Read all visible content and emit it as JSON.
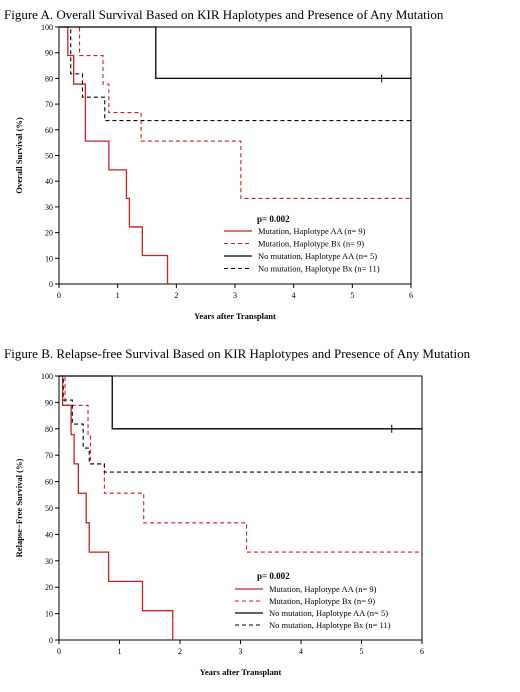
{
  "figures": [
    {
      "id": "A",
      "title": "Figure A. Overall Survival Based on KIR Haplotypes and Presence of Any Mutation"
    },
    {
      "id": "B",
      "title": "Figure B. Relapse-free Survival Based on KIR Haplotypes and Presence of Any Mutation"
    }
  ],
  "colors": {
    "red": "#cc1f1f",
    "black": "#000000"
  },
  "chart_data": [
    {
      "type": "line",
      "subtype": "kaplan-meier-step",
      "xlabel": "Years after Transplant",
      "ylabel": "Overall Survival (%)",
      "xlim": [
        0,
        6
      ],
      "ylim": [
        0,
        100
      ],
      "xticks": [
        "0",
        "1",
        "2",
        "3",
        "4",
        "5",
        "6"
      ],
      "yticks": [
        "0",
        "10",
        "20",
        "30",
        "40",
        "50",
        "60",
        "70",
        "80",
        "90",
        "100"
      ],
      "annotation": "p= 0.002",
      "legend_position": "bottom-right",
      "series": [
        {
          "name": "Mutation, Haplotype AA (n= 9)",
          "color": "#cc1f1f",
          "dash": false,
          "steps": [
            [
              0,
              100
            ],
            [
              0.15,
              88.9
            ],
            [
              0.25,
              77.8
            ],
            [
              0.45,
              55.6
            ],
            [
              0.85,
              44.4
            ],
            [
              1.15,
              33.3
            ],
            [
              1.2,
              22.2
            ],
            [
              1.42,
              11.1
            ],
            [
              1.85,
              0
            ]
          ],
          "end": 1.85,
          "censor": []
        },
        {
          "name": "Mutation, Haplotype Bx (n= 9)",
          "color": "#cc1f1f",
          "dash": true,
          "steps": [
            [
              0,
              100
            ],
            [
              0.35,
              88.9
            ],
            [
              0.75,
              77.8
            ],
            [
              0.85,
              66.7
            ],
            [
              1.4,
              55.6
            ],
            [
              3.1,
              33.3
            ]
          ],
          "end": 6,
          "censor": []
        },
        {
          "name": "No mutation, Haplotype AA (n= 5)",
          "color": "#000000",
          "dash": false,
          "steps": [
            [
              0,
              100
            ],
            [
              1.65,
              80
            ]
          ],
          "end": 6,
          "censor": [
            5.5
          ]
        },
        {
          "name": "No mutation, Haplotype Bx (n= 11)",
          "color": "#000000",
          "dash": true,
          "steps": [
            [
              0,
              100
            ],
            [
              0.2,
              81.8
            ],
            [
              0.4,
              72.7
            ],
            [
              0.78,
              63.6
            ]
          ],
          "end": 6,
          "censor": []
        }
      ]
    },
    {
      "type": "line",
      "subtype": "kaplan-meier-step",
      "xlabel": "Years after Transplant",
      "ylabel": "Relapse−Free Survival (%)",
      "xlim": [
        0,
        6
      ],
      "ylim": [
        0,
        100
      ],
      "xticks": [
        "0",
        "1",
        "2",
        "3",
        "4",
        "5",
        "6"
      ],
      "yticks": [
        "0",
        "10",
        "20",
        "30",
        "40",
        "50",
        "60",
        "70",
        "80",
        "90",
        "100"
      ],
      "annotation": "p= 0.002",
      "legend_position": "bottom-right",
      "series": [
        {
          "name": "Mutation, Haplotype AA (n= 9)",
          "color": "#cc1f1f",
          "dash": false,
          "steps": [
            [
              0,
              100
            ],
            [
              0.06,
              88.9
            ],
            [
              0.2,
              77.8
            ],
            [
              0.25,
              66.7
            ],
            [
              0.32,
              55.6
            ],
            [
              0.45,
              44.4
            ],
            [
              0.5,
              33.3
            ],
            [
              0.82,
              22.2
            ],
            [
              1.38,
              11.1
            ],
            [
              1.88,
              0
            ]
          ],
          "end": 1.88,
          "censor": []
        },
        {
          "name": "Mutation, Haplotype Bx (n= 9)",
          "color": "#cc1f1f",
          "dash": true,
          "steps": [
            [
              0,
              100
            ],
            [
              0.1,
              88.9
            ],
            [
              0.48,
              77.8
            ],
            [
              0.52,
              66.7
            ],
            [
              0.75,
              55.6
            ],
            [
              1.4,
              44.4
            ],
            [
              3.1,
              33.3
            ]
          ],
          "end": 6,
          "censor": []
        },
        {
          "name": "No mutation, Haplotype AA (n= 5)",
          "color": "#000000",
          "dash": false,
          "steps": [
            [
              0,
              100
            ],
            [
              0.88,
              80
            ]
          ],
          "end": 6,
          "censor": [
            5.5
          ]
        },
        {
          "name": "No mutation, Haplotype Bx (n= 11)",
          "color": "#000000",
          "dash": true,
          "steps": [
            [
              0,
              100
            ],
            [
              0.07,
              90.9
            ],
            [
              0.22,
              81.8
            ],
            [
              0.4,
              72.7
            ],
            [
              0.5,
              66.7
            ],
            [
              0.75,
              63.6
            ]
          ],
          "end": 6,
          "censor": []
        }
      ]
    }
  ]
}
